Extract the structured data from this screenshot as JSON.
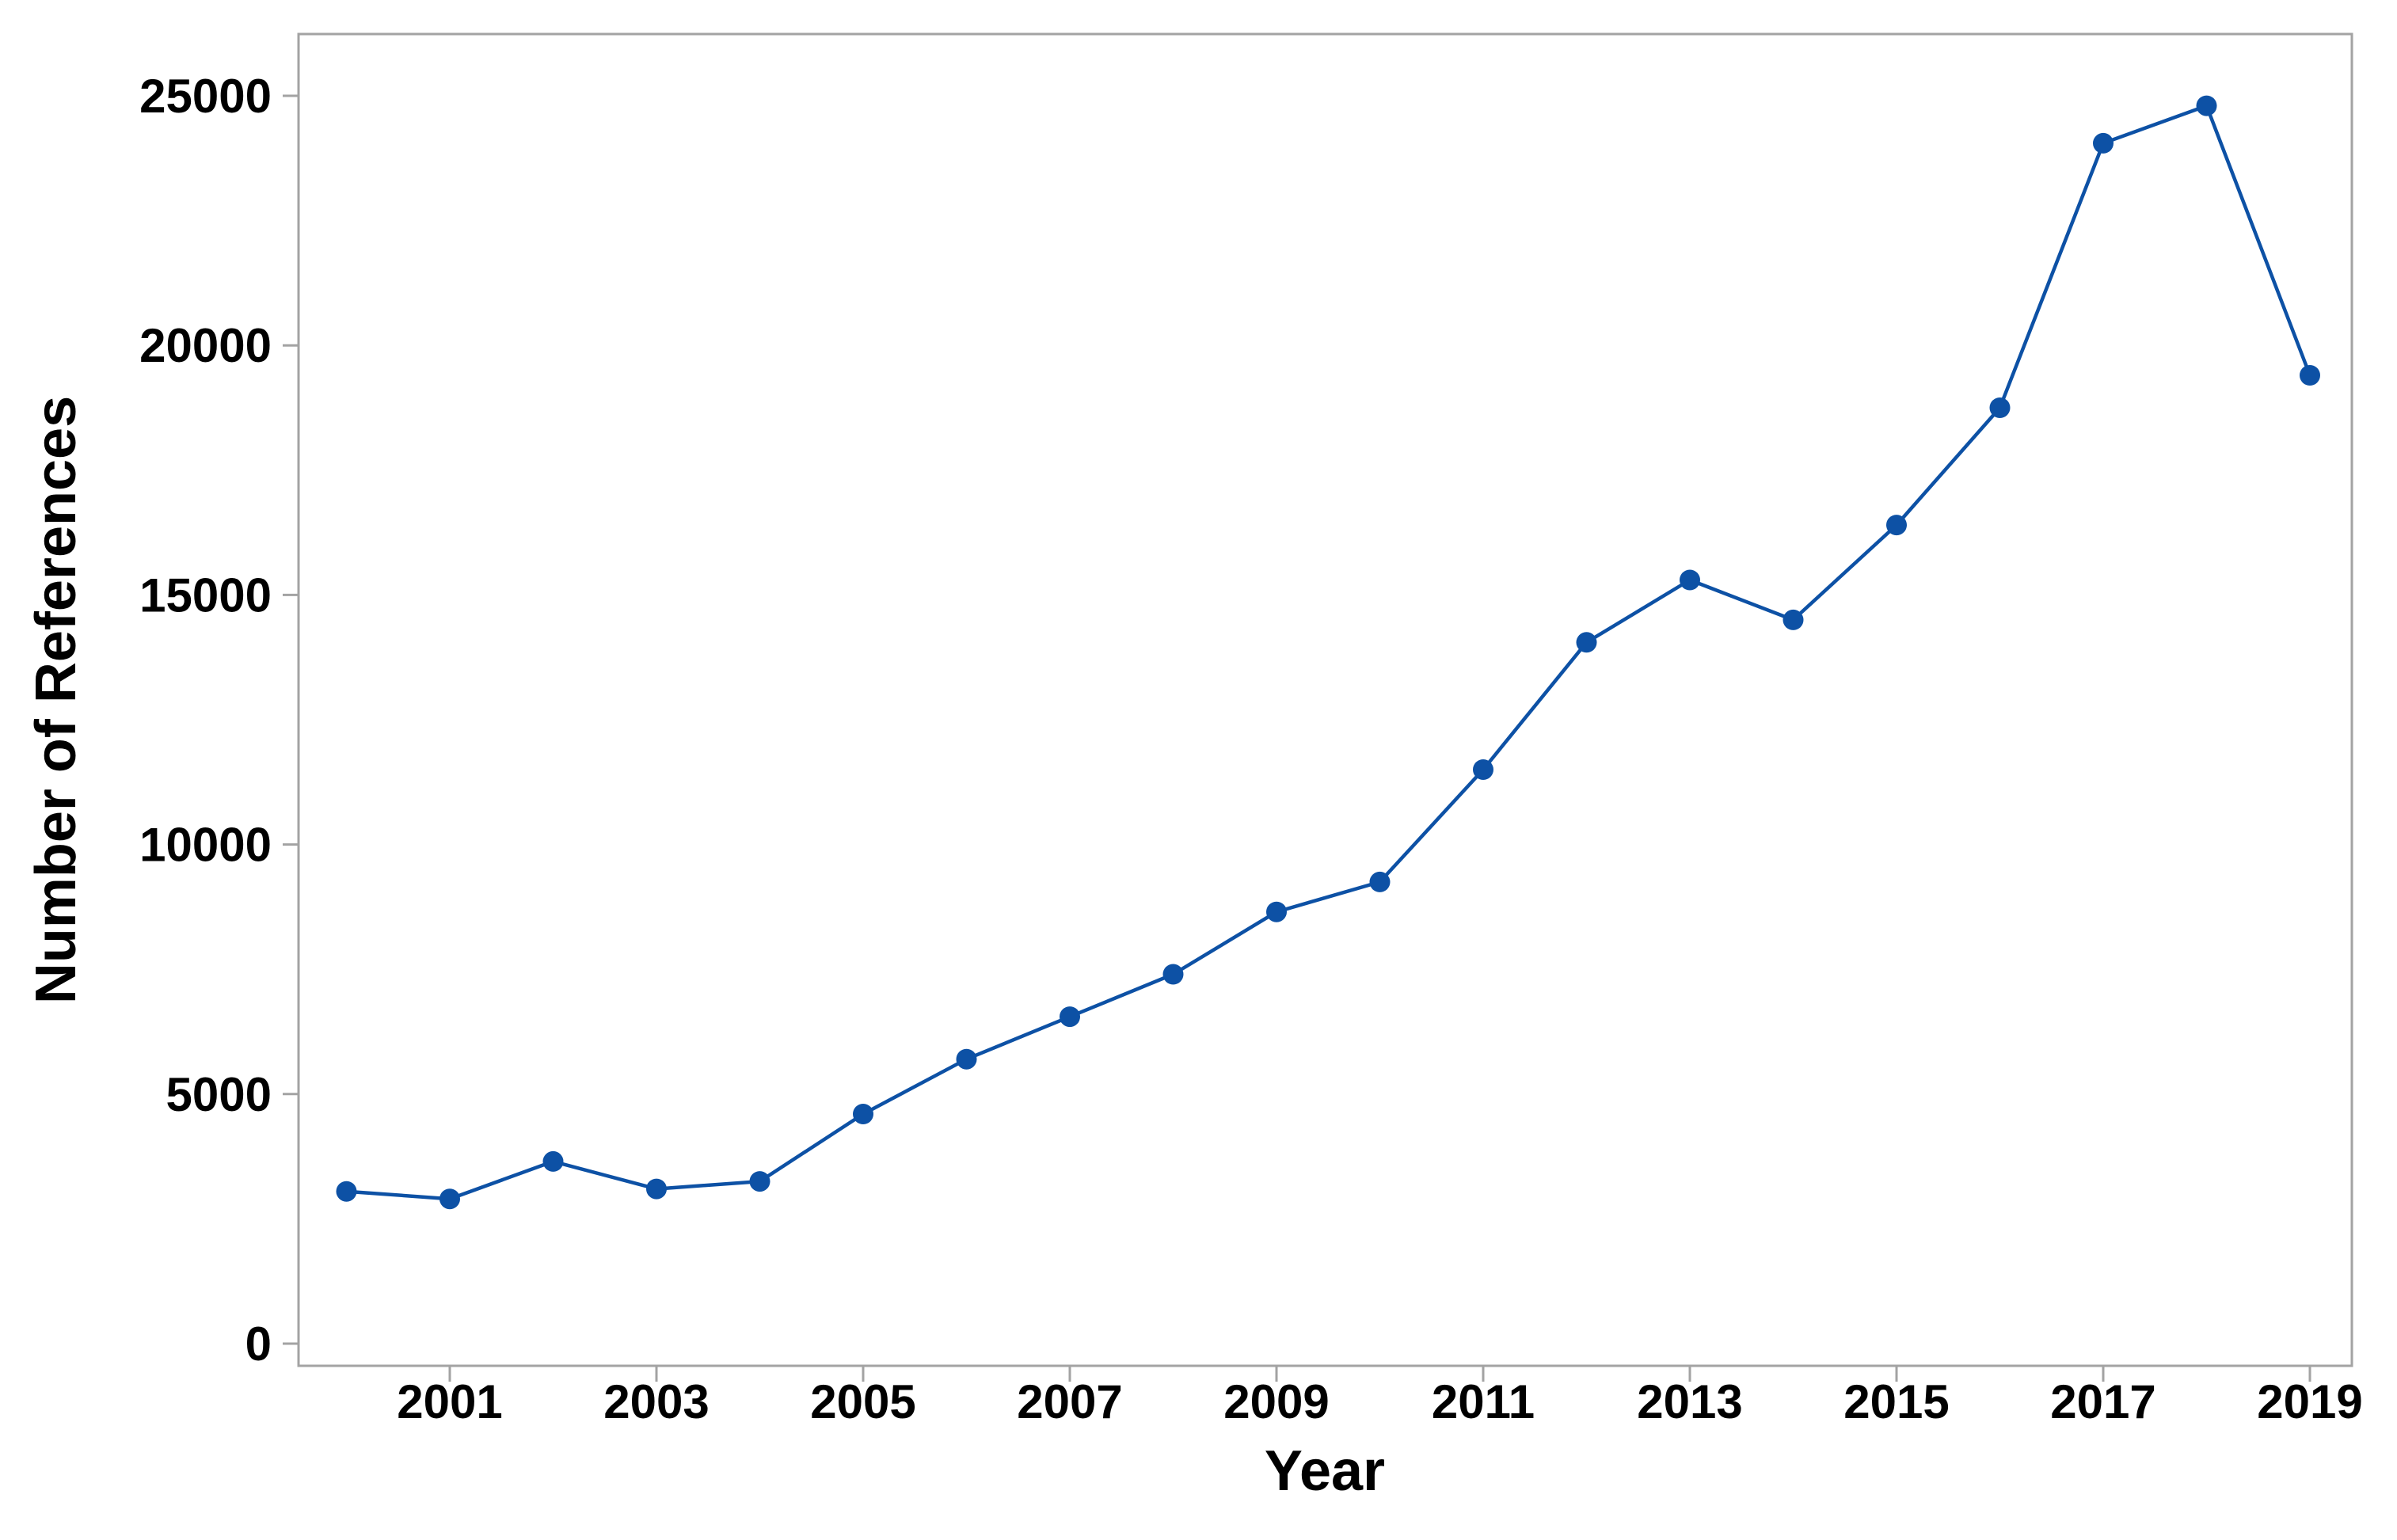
{
  "chart_data": {
    "type": "line",
    "title": "",
    "xlabel": "Year",
    "ylabel": "Number of References",
    "x": [
      2000,
      2001,
      2002,
      2003,
      2004,
      2005,
      2006,
      2007,
      2008,
      2009,
      2010,
      2011,
      2012,
      2013,
      2014,
      2015,
      2016,
      2017,
      2018,
      2019
    ],
    "series": [
      {
        "name": "Number of References",
        "values": [
          3050,
          2900,
          3650,
          3100,
          3250,
          4600,
          5700,
          6550,
          7400,
          8650,
          9250,
          11500,
          14050,
          15300,
          14500,
          16400,
          18750,
          24050,
          24800,
          19400
        ]
      }
    ],
    "x_tick_labels": [
      "2001",
      "2003",
      "2005",
      "2007",
      "2009",
      "2011",
      "2013",
      "2015",
      "2017",
      "2019"
    ],
    "x_tick_values": [
      2001,
      2003,
      2005,
      2007,
      2009,
      2011,
      2013,
      2015,
      2017,
      2019
    ],
    "y_tick_labels": [
      "0",
      "5000",
      "10000",
      "15000",
      "20000",
      "25000"
    ],
    "y_tick_values": [
      0,
      5000,
      10000,
      15000,
      20000,
      25000
    ],
    "xlim": [
      1999.54,
      2019.41
    ],
    "ylim": [
      -450,
      26240
    ],
    "grid": false,
    "legend_position": "none",
    "line_color": "#0d51a5",
    "marker_color": "#0d51a5",
    "marker_shape": "circle",
    "axis_color": "#a3a3a3",
    "text_color": "#000000",
    "background_color": "#ffffff"
  }
}
